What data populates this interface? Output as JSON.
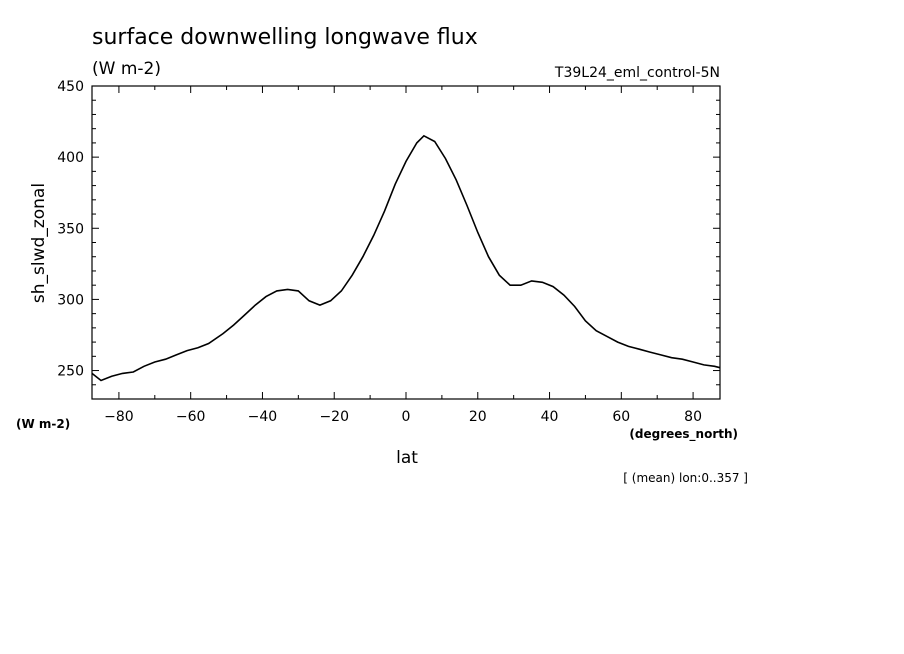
{
  "chart_data": {
    "type": "line",
    "title": "surface downwelling longwave flux",
    "units": "(W m-2)",
    "subtitle": "T39L24_eml_control-5N",
    "ylabel": "sh_slwd_zonal",
    "yunits": "(W m-2)",
    "xlabel": "lat",
    "xunits": "(degrees_north)",
    "note": "[ (mean) lon:0..357 ]",
    "xlim": [
      -87.5,
      87.5
    ],
    "ylim": [
      230,
      450
    ],
    "xticks": [
      -80,
      -60,
      -40,
      -20,
      0,
      20,
      40,
      60,
      80
    ],
    "yticks": [
      250,
      300,
      350,
      400,
      450
    ],
    "grid": false,
    "series": [
      {
        "x": [
          -87.5,
          -85,
          -82,
          -79,
          -76,
          -73,
          -70,
          -67,
          -64,
          -61,
          -58,
          -55,
          -51,
          -48,
          -45,
          -42,
          -39,
          -36,
          -33,
          -30,
          -27,
          -24,
          -21,
          -18,
          -15,
          -12,
          -9,
          -6,
          -3,
          0,
          3,
          5,
          8,
          11,
          14,
          17,
          20,
          23,
          26,
          29,
          32,
          35,
          38,
          41,
          44,
          47,
          50,
          53,
          56,
          59,
          62,
          65,
          68,
          71,
          74,
          77,
          80,
          83,
          86,
          87.5
        ],
        "y": [
          248,
          243,
          246,
          248,
          249,
          253,
          256,
          258,
          261,
          264,
          266,
          269,
          276,
          282,
          289,
          296,
          302,
          306,
          307,
          306,
          299,
          296,
          299,
          306,
          317,
          330,
          345,
          362,
          381,
          397,
          410,
          415,
          411,
          399,
          384,
          366,
          347,
          330,
          317,
          310,
          310,
          313,
          312,
          309,
          303,
          295,
          285,
          278,
          274,
          270,
          267,
          265,
          263,
          261,
          259,
          258,
          256,
          254,
          253,
          252
        ]
      }
    ]
  }
}
